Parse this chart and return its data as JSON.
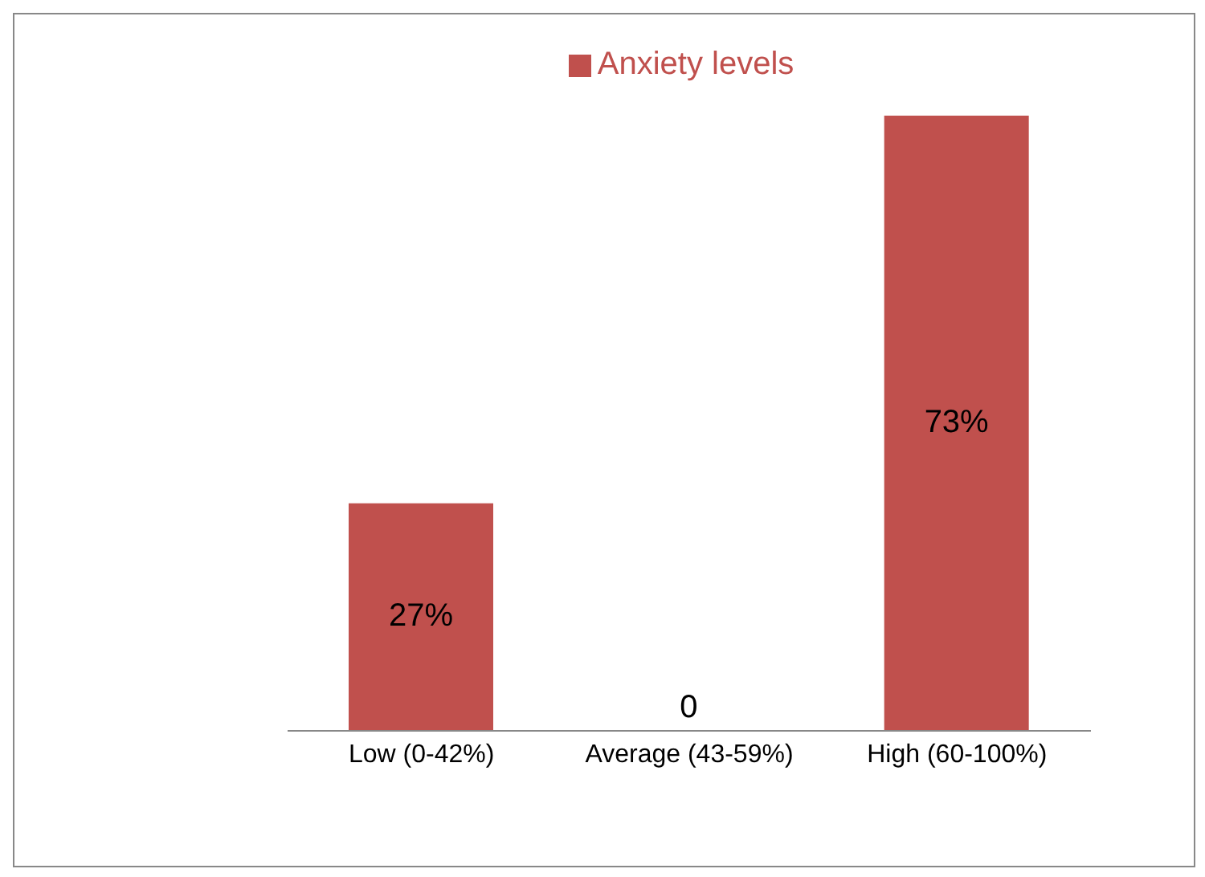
{
  "chart_data": {
    "type": "bar",
    "categories": [
      "Low (0-42%)",
      "Average (43-59%)",
      "High (60-100%)"
    ],
    "series": [
      {
        "name": "Anxiety levels",
        "color": "#c0504d",
        "values": [
          27,
          0,
          73
        ],
        "value_labels": [
          "27%",
          "0",
          "73%"
        ]
      }
    ],
    "legend": "top",
    "grid": false
  }
}
